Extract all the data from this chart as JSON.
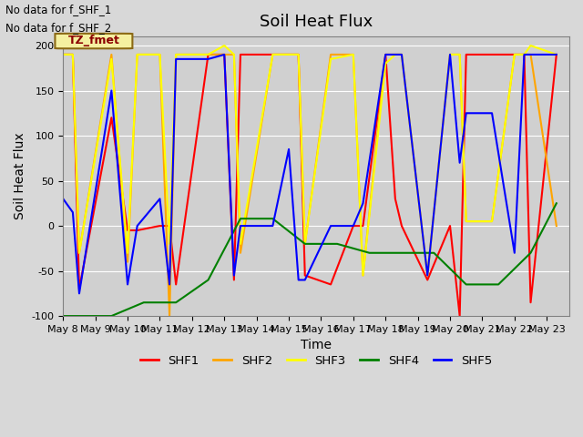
{
  "title": "Soil Heat Flux",
  "xlabel": "Time",
  "ylabel": "Soil Heat Flux",
  "annotation_lines": [
    "No data for f_SHF_1",
    "No data for f_SHF_2"
  ],
  "legend_label": "TZ_fmet",
  "ylim": [
    -100,
    210
  ],
  "xlim": [
    7.0,
    22.7
  ],
  "series": {
    "SHF1": {
      "color": "red",
      "x": [
        7.0,
        7.3,
        7.5,
        8.5,
        9.0,
        9.3,
        10.0,
        10.3,
        10.5,
        11.5,
        12.0,
        12.3,
        12.5,
        13.5,
        14.0,
        14.3,
        14.5,
        15.3,
        16.0,
        16.3,
        17.0,
        17.3,
        17.5,
        18.3,
        19.0,
        19.3,
        19.5,
        20.3,
        21.0,
        21.3,
        21.5,
        22.3
      ],
      "y": [
        190,
        190,
        -70,
        120,
        -5,
        -5,
        0,
        0,
        -65,
        190,
        190,
        -60,
        190,
        190,
        190,
        190,
        -55,
        -65,
        0,
        0,
        190,
        30,
        0,
        -60,
        0,
        -100,
        190,
        190,
        190,
        190,
        -85,
        190
      ]
    },
    "SHF2": {
      "color": "orange",
      "x": [
        7.0,
        7.3,
        7.5,
        8.5,
        9.0,
        9.3,
        10.0,
        10.3,
        10.5,
        11.5,
        12.0,
        12.3,
        12.5,
        13.5,
        14.0,
        14.3,
        14.5,
        15.3,
        16.0,
        16.3,
        17.0,
        17.3,
        17.5,
        18.3,
        19.0,
        19.3,
        19.5,
        20.3,
        21.0,
        21.3,
        21.5,
        22.3
      ],
      "y": [
        190,
        190,
        -30,
        190,
        -40,
        190,
        190,
        -100,
        190,
        190,
        190,
        190,
        -30,
        190,
        190,
        190,
        -20,
        190,
        190,
        -55,
        190,
        190,
        190,
        -55,
        190,
        190,
        5,
        5,
        190,
        190,
        190,
        0
      ]
    },
    "SHF3": {
      "color": "yellow",
      "x": [
        7.0,
        7.3,
        7.5,
        8.5,
        9.0,
        9.3,
        10.0,
        10.3,
        10.5,
        11.5,
        12.0,
        12.3,
        12.5,
        13.5,
        14.0,
        14.3,
        14.5,
        15.3,
        16.0,
        16.3,
        17.0,
        17.3,
        17.5,
        18.3,
        19.0,
        19.3,
        19.5,
        20.3,
        21.0,
        21.3,
        21.5,
        22.3
      ],
      "y": [
        190,
        190,
        -30,
        185,
        -30,
        190,
        190,
        -20,
        190,
        190,
        200,
        190,
        -20,
        190,
        190,
        190,
        -20,
        185,
        190,
        -55,
        180,
        190,
        190,
        -55,
        190,
        190,
        5,
        5,
        190,
        190,
        200,
        190
      ]
    },
    "SHF4": {
      "color": "green",
      "x": [
        7.0,
        7.5,
        8.5,
        9.5,
        10.5,
        11.5,
        12.5,
        13.5,
        14.5,
        15.5,
        16.5,
        17.5,
        18.5,
        19.5,
        20.5,
        21.5,
        22.3
      ],
      "y": [
        -100,
        -100,
        -100,
        -85,
        -85,
        -60,
        8,
        8,
        -20,
        -20,
        -30,
        -30,
        -30,
        -65,
        -65,
        -30,
        25
      ]
    },
    "SHF5": {
      "color": "blue",
      "x": [
        7.0,
        7.3,
        7.5,
        8.5,
        9.0,
        9.3,
        10.0,
        10.3,
        10.5,
        11.5,
        12.0,
        12.3,
        12.5,
        13.5,
        14.0,
        14.3,
        14.5,
        15.3,
        16.0,
        16.3,
        17.0,
        17.3,
        17.5,
        18.3,
        19.0,
        19.3,
        19.5,
        20.3,
        21.0,
        21.3,
        21.5,
        22.3
      ],
      "y": [
        30,
        15,
        -75,
        150,
        -65,
        0,
        30,
        -65,
        185,
        185,
        190,
        -55,
        0,
        0,
        85,
        -60,
        -60,
        0,
        0,
        25,
        190,
        190,
        190,
        -55,
        190,
        70,
        125,
        125,
        -30,
        190,
        190,
        190
      ]
    }
  },
  "xtick_labels": [
    "May 8",
    "May 9",
    "May 10",
    "May 11",
    "May 12",
    "May 13",
    "May 14",
    "May 15",
    "May 16",
    "May 17",
    "May 18",
    "May 19",
    "May 20",
    "May 21",
    "May 22",
    "May 23"
  ],
  "xtick_positions": [
    7.0,
    8.0,
    9.0,
    10.0,
    11.0,
    12.0,
    13.0,
    14.0,
    15.0,
    16.0,
    17.0,
    18.0,
    19.0,
    20.0,
    21.0,
    22.0
  ],
  "background_color": "#d8d8d8",
  "plot_bg_color": "#d0d0d0",
  "legend_box_color": "#f5f0a0",
  "legend_box_edge": "#8b6914",
  "title_fontsize": 13,
  "axis_label_fontsize": 10,
  "tick_label_fontsize": 8
}
